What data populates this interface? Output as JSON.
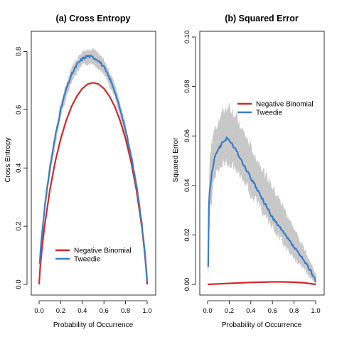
{
  "chart_data": [
    {
      "type": "line",
      "title": "(a) Cross Entropy",
      "xlabel": "Probability of Occurrence",
      "ylabel": "Cross Entropy",
      "xlim": [
        0.0,
        1.0
      ],
      "ylim": [
        0.0,
        0.85
      ],
      "xticks": [
        "0.0",
        "0.2",
        "0.4",
        "0.6",
        "0.8",
        "1.0"
      ],
      "yticks": [
        "0.0",
        "0.2",
        "0.4",
        "0.6",
        "0.8"
      ],
      "legend_position": "bottom-center",
      "series": [
        {
          "name": "Negative Binomial",
          "color": "#d62728",
          "x": [
            0.0,
            0.01,
            0.025,
            0.05,
            0.1,
            0.15,
            0.2,
            0.25,
            0.3,
            0.35,
            0.4,
            0.45,
            0.5,
            0.55,
            0.6,
            0.65,
            0.7,
            0.75,
            0.8,
            0.85,
            0.9,
            0.95,
            0.975,
            0.99,
            1.0
          ],
          "values": [
            0.0,
            0.056,
            0.117,
            0.199,
            0.325,
            0.423,
            0.5,
            0.562,
            0.611,
            0.647,
            0.673,
            0.688,
            0.693,
            0.688,
            0.673,
            0.647,
            0.611,
            0.562,
            0.5,
            0.423,
            0.325,
            0.199,
            0.117,
            0.056,
            0.0
          ]
        },
        {
          "name": "Tweedie",
          "color": "#3a7dc9",
          "x": [
            0.005,
            0.01,
            0.025,
            0.05,
            0.1,
            0.15,
            0.2,
            0.25,
            0.3,
            0.35,
            0.4,
            0.45,
            0.5,
            0.55,
            0.6,
            0.65,
            0.7,
            0.75,
            0.8,
            0.85,
            0.9,
            0.95,
            0.975,
            0.99,
            1.0
          ],
          "values": [
            0.07,
            0.1,
            0.17,
            0.26,
            0.4,
            0.51,
            0.6,
            0.67,
            0.72,
            0.755,
            0.775,
            0.785,
            0.78,
            0.77,
            0.745,
            0.71,
            0.665,
            0.6,
            0.53,
            0.445,
            0.345,
            0.21,
            0.125,
            0.06,
            0.01
          ]
        }
      ],
      "band": {
        "color": "#c8c8c8",
        "x": [
          0.005,
          0.05,
          0.1,
          0.2,
          0.3,
          0.4,
          0.5,
          0.6,
          0.7,
          0.8,
          0.9,
          0.95,
          1.0
        ],
        "lower": [
          0.06,
          0.24,
          0.38,
          0.58,
          0.7,
          0.755,
          0.76,
          0.725,
          0.645,
          0.51,
          0.33,
          0.2,
          0.005
        ],
        "upper": [
          0.085,
          0.28,
          0.42,
          0.62,
          0.745,
          0.8,
          0.81,
          0.77,
          0.69,
          0.55,
          0.36,
          0.22,
          0.015
        ]
      }
    },
    {
      "type": "line",
      "title": "(b) Squared Error",
      "xlabel": "Probability of Occurrence",
      "ylabel": "Squared Error",
      "xlim": [
        0.0,
        1.0
      ],
      "ylim": [
        0.0,
        0.1
      ],
      "xticks": [
        "0.0",
        "0.2",
        "0.4",
        "0.6",
        "0.8",
        "1.0"
      ],
      "yticks": [
        "0.00",
        "0.02",
        "0.04",
        "0.06",
        "0.08",
        "0.10"
      ],
      "legend_position": "top-right",
      "series": [
        {
          "name": "Negative Binomial",
          "color": "#d62728",
          "x": [
            0.0,
            0.1,
            0.2,
            0.3,
            0.4,
            0.5,
            0.6,
            0.7,
            0.8,
            0.9,
            1.0
          ],
          "values": [
            0.0,
            0.0002,
            0.0004,
            0.0006,
            0.0008,
            0.0009,
            0.001,
            0.001,
            0.0009,
            0.0006,
            0.0
          ]
        },
        {
          "name": "Tweedie",
          "color": "#3a7dc9",
          "x": [
            0.005,
            0.01,
            0.02,
            0.04,
            0.06,
            0.08,
            0.1,
            0.12,
            0.15,
            0.18,
            0.2,
            0.22,
            0.25,
            0.28,
            0.3,
            0.35,
            0.4,
            0.45,
            0.5,
            0.55,
            0.6,
            0.65,
            0.7,
            0.75,
            0.8,
            0.85,
            0.9,
            0.93,
            0.95,
            0.97,
            0.99,
            1.0
          ],
          "values": [
            0.007,
            0.03,
            0.038,
            0.045,
            0.05,
            0.053,
            0.055,
            0.056,
            0.058,
            0.059,
            0.0585,
            0.057,
            0.055,
            0.053,
            0.051,
            0.047,
            0.043,
            0.039,
            0.035,
            0.031,
            0.027,
            0.024,
            0.021,
            0.018,
            0.015,
            0.012,
            0.009,
            0.007,
            0.006,
            0.004,
            0.003,
            0.001
          ]
        }
      ],
      "band": {
        "color": "#c8c8c8",
        "x": [
          0.005,
          0.02,
          0.05,
          0.1,
          0.15,
          0.2,
          0.25,
          0.3,
          0.4,
          0.5,
          0.6,
          0.7,
          0.8,
          0.9,
          0.95,
          1.0
        ],
        "lower": [
          0.004,
          0.028,
          0.04,
          0.047,
          0.05,
          0.05,
          0.048,
          0.045,
          0.037,
          0.03,
          0.023,
          0.017,
          0.011,
          0.006,
          0.003,
          0.0
        ],
        "upper": [
          0.012,
          0.05,
          0.06,
          0.066,
          0.07,
          0.072,
          0.068,
          0.064,
          0.055,
          0.047,
          0.039,
          0.031,
          0.022,
          0.014,
          0.009,
          0.004
        ]
      }
    }
  ]
}
